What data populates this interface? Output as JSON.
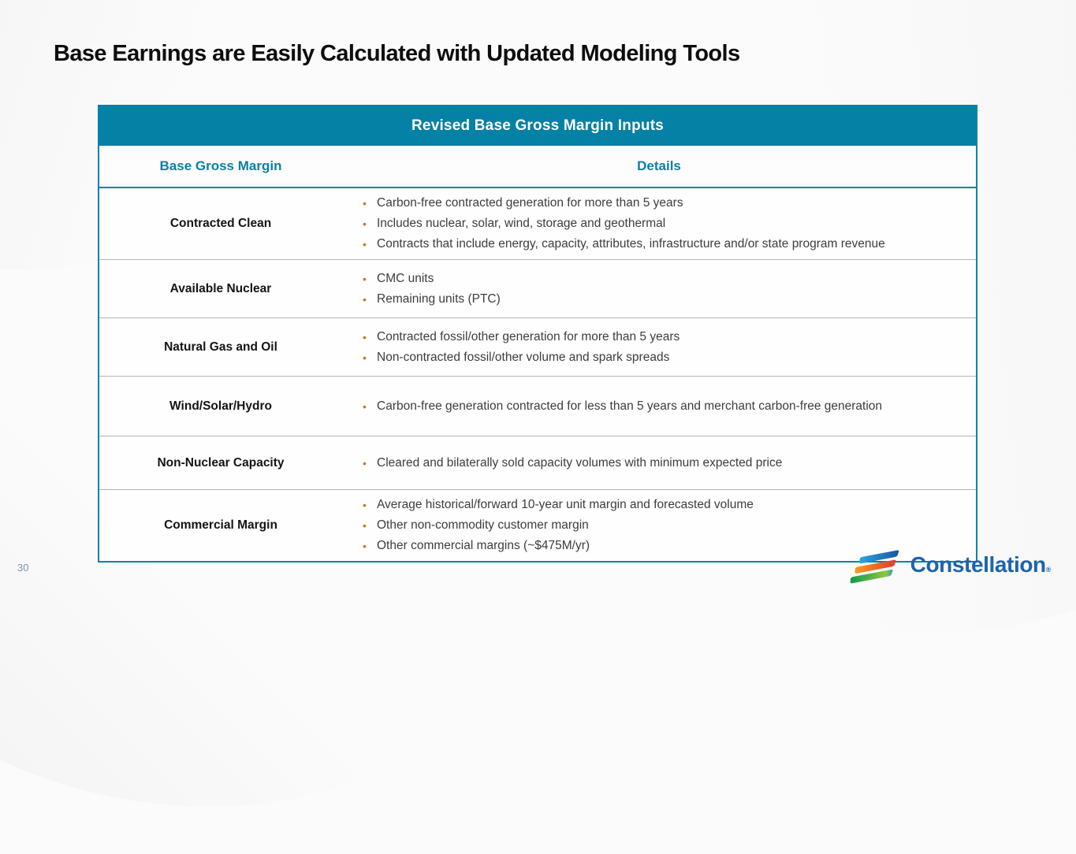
{
  "slide": {
    "title": "Base Earnings are Easily Calculated with Updated Modeling Tools",
    "page_number": "30"
  },
  "table": {
    "header": "Revised Base Gross Margin Inputs",
    "columns": {
      "margin": "Base Gross Margin",
      "details": "Details"
    },
    "rows": [
      {
        "label": "Contracted Clean",
        "details": [
          "Carbon-free contracted generation for more than 5 years",
          "Includes nuclear, solar, wind, storage and geothermal",
          "Contracts that include energy, capacity, attributes, infrastructure and/or state program revenue"
        ]
      },
      {
        "label": "Available Nuclear",
        "details": [
          "CMC units",
          "Remaining units (PTC)"
        ]
      },
      {
        "label": "Natural Gas and Oil",
        "details": [
          "Contracted fossil/other generation for more than 5 years",
          "Non-contracted fossil/other volume and spark spreads"
        ]
      },
      {
        "label": "Wind/Solar/Hydro",
        "details": [
          "Carbon-free generation contracted for less than 5 years and merchant carbon-free generation"
        ]
      },
      {
        "label": "Non-Nuclear Capacity",
        "details": [
          "Cleared and bilaterally sold capacity volumes with minimum expected price"
        ]
      },
      {
        "label": "Commercial Margin",
        "details": [
          "Average historical/forward 10-year unit margin and forecasted volume",
          "Other non-commodity customer margin",
          "Other commercial margins (~$475M/yr)"
        ]
      }
    ]
  },
  "footer": {
    "brand": "Constellation",
    "registered_mark": "®"
  },
  "colors": {
    "table_teal": "#0681a6",
    "subheader_text": "#0b7fa3",
    "bullet_orange": "#c7791f",
    "detail_text": "#3d3d3d",
    "label_text": "#141414",
    "page_number": "#7d95b5",
    "logo_blue": "#1c64ae",
    "background": "#fbfbfb"
  }
}
